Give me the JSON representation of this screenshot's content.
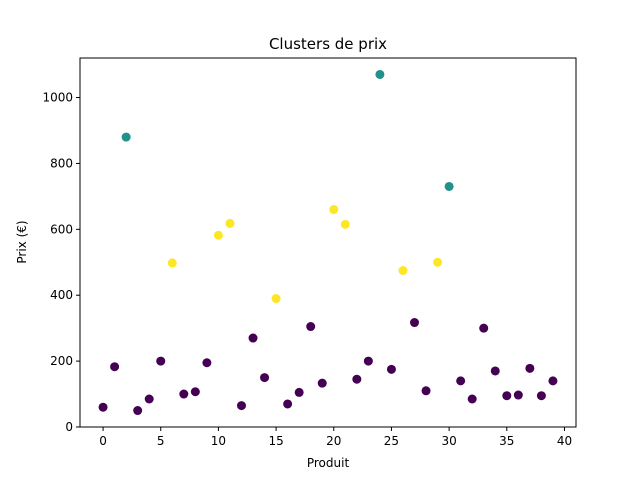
{
  "chart_data": {
    "type": "scatter",
    "title": "Clusters de prix",
    "xlabel": "Produit",
    "ylabel": "Prix (€)",
    "xlim": [
      -2,
      41
    ],
    "ylim": [
      0,
      1120
    ],
    "xticks": [
      0,
      5,
      10,
      15,
      20,
      25,
      30,
      35,
      40
    ],
    "yticks": [
      0,
      200,
      400,
      600,
      800,
      1000
    ],
    "grid": false,
    "cluster_colors": [
      "#440154",
      "#21918c",
      "#fde725"
    ],
    "points": [
      {
        "x": 0,
        "y": 60,
        "cluster": 0
      },
      {
        "x": 1,
        "y": 183,
        "cluster": 0
      },
      {
        "x": 2,
        "y": 880,
        "cluster": 1
      },
      {
        "x": 3,
        "y": 50,
        "cluster": 0
      },
      {
        "x": 4,
        "y": 85,
        "cluster": 0
      },
      {
        "x": 5,
        "y": 200,
        "cluster": 0
      },
      {
        "x": 6,
        "y": 498,
        "cluster": 2
      },
      {
        "x": 7,
        "y": 100,
        "cluster": 0
      },
      {
        "x": 8,
        "y": 107,
        "cluster": 0
      },
      {
        "x": 9,
        "y": 195,
        "cluster": 0
      },
      {
        "x": 10,
        "y": 582,
        "cluster": 2
      },
      {
        "x": 11,
        "y": 618,
        "cluster": 2
      },
      {
        "x": 12,
        "y": 65,
        "cluster": 0
      },
      {
        "x": 13,
        "y": 270,
        "cluster": 0
      },
      {
        "x": 14,
        "y": 150,
        "cluster": 0
      },
      {
        "x": 15,
        "y": 390,
        "cluster": 2
      },
      {
        "x": 16,
        "y": 70,
        "cluster": 0
      },
      {
        "x": 17,
        "y": 105,
        "cluster": 0
      },
      {
        "x": 18,
        "y": 305,
        "cluster": 0
      },
      {
        "x": 19,
        "y": 133,
        "cluster": 0
      },
      {
        "x": 20,
        "y": 660,
        "cluster": 2
      },
      {
        "x": 21,
        "y": 615,
        "cluster": 2
      },
      {
        "x": 22,
        "y": 145,
        "cluster": 0
      },
      {
        "x": 23,
        "y": 200,
        "cluster": 0
      },
      {
        "x": 24,
        "y": 1070,
        "cluster": 1
      },
      {
        "x": 25,
        "y": 175,
        "cluster": 0
      },
      {
        "x": 26,
        "y": 475,
        "cluster": 2
      },
      {
        "x": 27,
        "y": 317,
        "cluster": 0
      },
      {
        "x": 28,
        "y": 110,
        "cluster": 0
      },
      {
        "x": 29,
        "y": 500,
        "cluster": 2
      },
      {
        "x": 30,
        "y": 730,
        "cluster": 1
      },
      {
        "x": 31,
        "y": 140,
        "cluster": 0
      },
      {
        "x": 32,
        "y": 85,
        "cluster": 0
      },
      {
        "x": 33,
        "y": 300,
        "cluster": 0
      },
      {
        "x": 34,
        "y": 170,
        "cluster": 0
      },
      {
        "x": 35,
        "y": 95,
        "cluster": 0
      },
      {
        "x": 36,
        "y": 97,
        "cluster": 0
      },
      {
        "x": 37,
        "y": 178,
        "cluster": 0
      },
      {
        "x": 38,
        "y": 95,
        "cluster": 0
      },
      {
        "x": 39,
        "y": 140,
        "cluster": 0
      }
    ]
  }
}
